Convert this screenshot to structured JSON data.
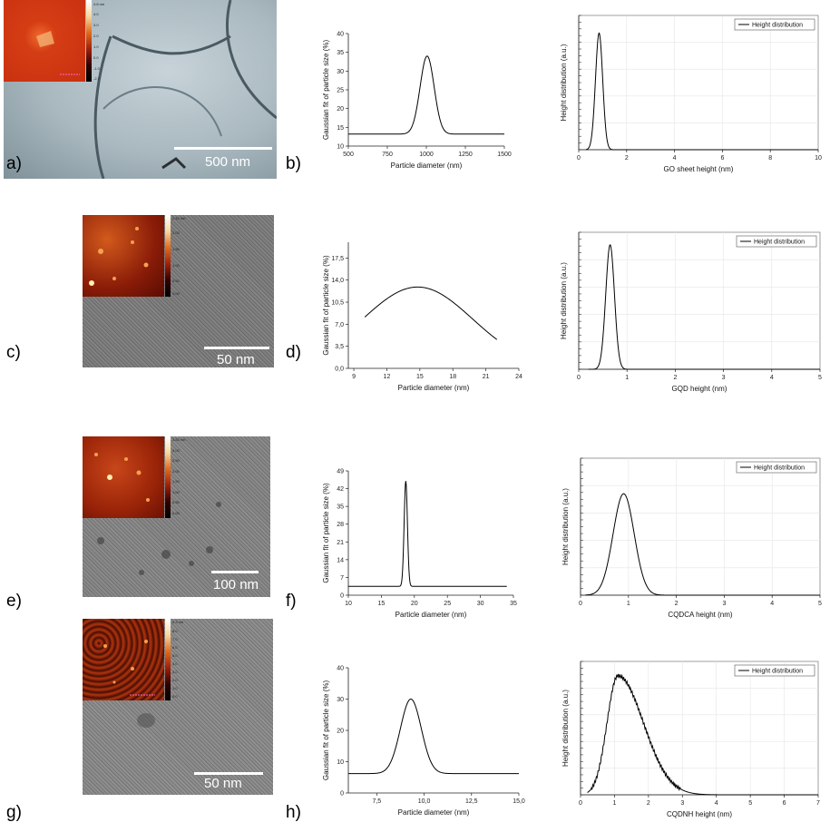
{
  "panels": [
    {
      "id": "a",
      "label": "a)",
      "scale_label": "500 nm",
      "cbar_ticks": [
        "4.8 nm",
        "4.0",
        "3.0",
        "2.0",
        "1.0",
        "0.0",
        "-1.0",
        "-2.7"
      ]
    },
    {
      "id": "c",
      "label": "c)",
      "scale_label": "50 nm",
      "cbar_ticks": [
        "2.42 nm",
        "2.00",
        "1.50",
        "1.00",
        "0.50",
        "0.00"
      ]
    },
    {
      "id": "e",
      "label": "e)",
      "scale_label": "100 nm",
      "cbar_ticks": [
        "3.83 nm",
        "3.00",
        "2.50",
        "2.00",
        "1.50",
        "1.00",
        "0.50",
        "0.00"
      ]
    },
    {
      "id": "g",
      "label": "g)",
      "scale_label": "50 nm",
      "cbar_ticks": [
        "9.3 nm",
        "8.0",
        "7.0",
        "6.0",
        "5.0",
        "4.0",
        "3.0",
        "2.0",
        "1.0",
        "0.0"
      ]
    }
  ],
  "chart_data": [
    {
      "id": "b",
      "label": "b)",
      "type": "line",
      "xlabel": "Particle diameter (nm)",
      "ylabel": "Gaussian fit of particle size (%)",
      "xlim": [
        500,
        1500
      ],
      "ylim": [
        10,
        40
      ],
      "xticks": [
        "500",
        "750",
        "1000",
        "1250",
        "1500"
      ],
      "yticks": [
        "10",
        "15",
        "20",
        "25",
        "30",
        "35",
        "40"
      ],
      "gauss": {
        "base": 13.2,
        "amp": 20.8,
        "mu": 1005,
        "sigma": 45,
        "x": [
          500,
          1500
        ]
      }
    },
    {
      "id": "d",
      "label": "d)",
      "type": "line",
      "xlabel": "Particle diameter (nm)",
      "ylabel": "Gaussian fit of particle size (%)",
      "xlim": [
        8.5,
        24
      ],
      "ylim": [
        0,
        20
      ],
      "xticks": [
        "9",
        "12",
        "15",
        "18",
        "21",
        "24"
      ],
      "yticks": [
        "0,0",
        "3,5",
        "7,0",
        "10,5",
        "14,0",
        "17,5"
      ],
      "gauss": {
        "base": 0,
        "amp": 12.9,
        "mu": 14.8,
        "sigma": 5.0,
        "x": [
          10,
          22
        ]
      }
    },
    {
      "id": "f",
      "label": "f)",
      "type": "line",
      "xlabel": "Particle diameter (nm)",
      "ylabel": "Gaussian fit of particle size (%)",
      "xlim": [
        10,
        35
      ],
      "ylim": [
        0,
        49
      ],
      "xticks": [
        "10",
        "15",
        "20",
        "25",
        "30",
        "35"
      ],
      "yticks": [
        "0",
        "7",
        "14",
        "21",
        "28",
        "35",
        "42",
        "49"
      ],
      "gauss": {
        "base": 3.5,
        "amp": 41.5,
        "mu": 18.7,
        "sigma": 0.25,
        "x": [
          10,
          34
        ]
      }
    },
    {
      "id": "h",
      "label": "h)",
      "type": "line",
      "xlabel": "Particle diameter (nm)",
      "ylabel": "Gaussian fit of particle size (%)",
      "xlim": [
        6,
        15
      ],
      "ylim": [
        0,
        40
      ],
      "xticks": [
        "7,5",
        "10,0",
        "12,5",
        "15,0"
      ],
      "xtick_vals": [
        7.5,
        10,
        12.5,
        15
      ],
      "yticks": [
        "0",
        "10",
        "20",
        "30",
        "40"
      ],
      "gauss": {
        "base": 6.2,
        "amp": 23.8,
        "mu": 9.3,
        "sigma": 0.55,
        "x": [
          6,
          15
        ]
      }
    },
    {
      "id": "b2",
      "type": "line",
      "xlabel": "GO sheet height (nm)",
      "ylabel": "Height distribution (a.u.)",
      "legend": "Height distribution",
      "xlim": [
        0,
        10
      ],
      "ylim": [
        0,
        1.15
      ],
      "xticks": [
        "0",
        "2",
        "4",
        "6",
        "8",
        "10"
      ],
      "gauss": {
        "base": 0,
        "amp": 1.0,
        "mu": 0.85,
        "sigma": 0.15,
        "x": [
          0.3,
          10
        ]
      }
    },
    {
      "id": "d2",
      "type": "line",
      "xlabel": "GQD height (nm)",
      "ylabel": "Height distribution (a.u.)",
      "legend": "Height distribution",
      "xlim": [
        0,
        5
      ],
      "ylim": [
        0,
        1.1
      ],
      "xticks": [
        "0",
        "1",
        "2",
        "3",
        "4",
        "5"
      ],
      "gauss": {
        "base": 0,
        "amp": 1.0,
        "mu": 0.65,
        "sigma": 0.09,
        "x": [
          0.2,
          5
        ]
      }
    },
    {
      "id": "f2",
      "type": "line",
      "xlabel": "CQDCA height (nm)",
      "ylabel": "Height distribution (a.u.)",
      "legend": "Height distribution",
      "xlim": [
        0,
        5
      ],
      "ylim": [
        0,
        1.35
      ],
      "xticks": [
        "0",
        "1",
        "2",
        "3",
        "4",
        "5"
      ],
      "gauss": {
        "base": 0,
        "amp": 1.0,
        "mu": 0.9,
        "sigma": 0.22,
        "x": [
          0.1,
          5
        ]
      }
    },
    {
      "id": "h2",
      "type": "line",
      "xlabel": "CQDNH height (nm)",
      "ylabel": "Height distribution (a.u.)",
      "legend": "Height distribution",
      "xlim": [
        0,
        7
      ],
      "ylim": [
        0,
        1.12
      ],
      "xticks": [
        "0",
        "1",
        "2",
        "3",
        "4",
        "5",
        "6",
        "7"
      ],
      "skew": {
        "mu": 1.1,
        "sigL": 0.32,
        "sigR": 0.75,
        "amp": 1.0,
        "x": [
          0.2,
          7
        ]
      }
    }
  ]
}
